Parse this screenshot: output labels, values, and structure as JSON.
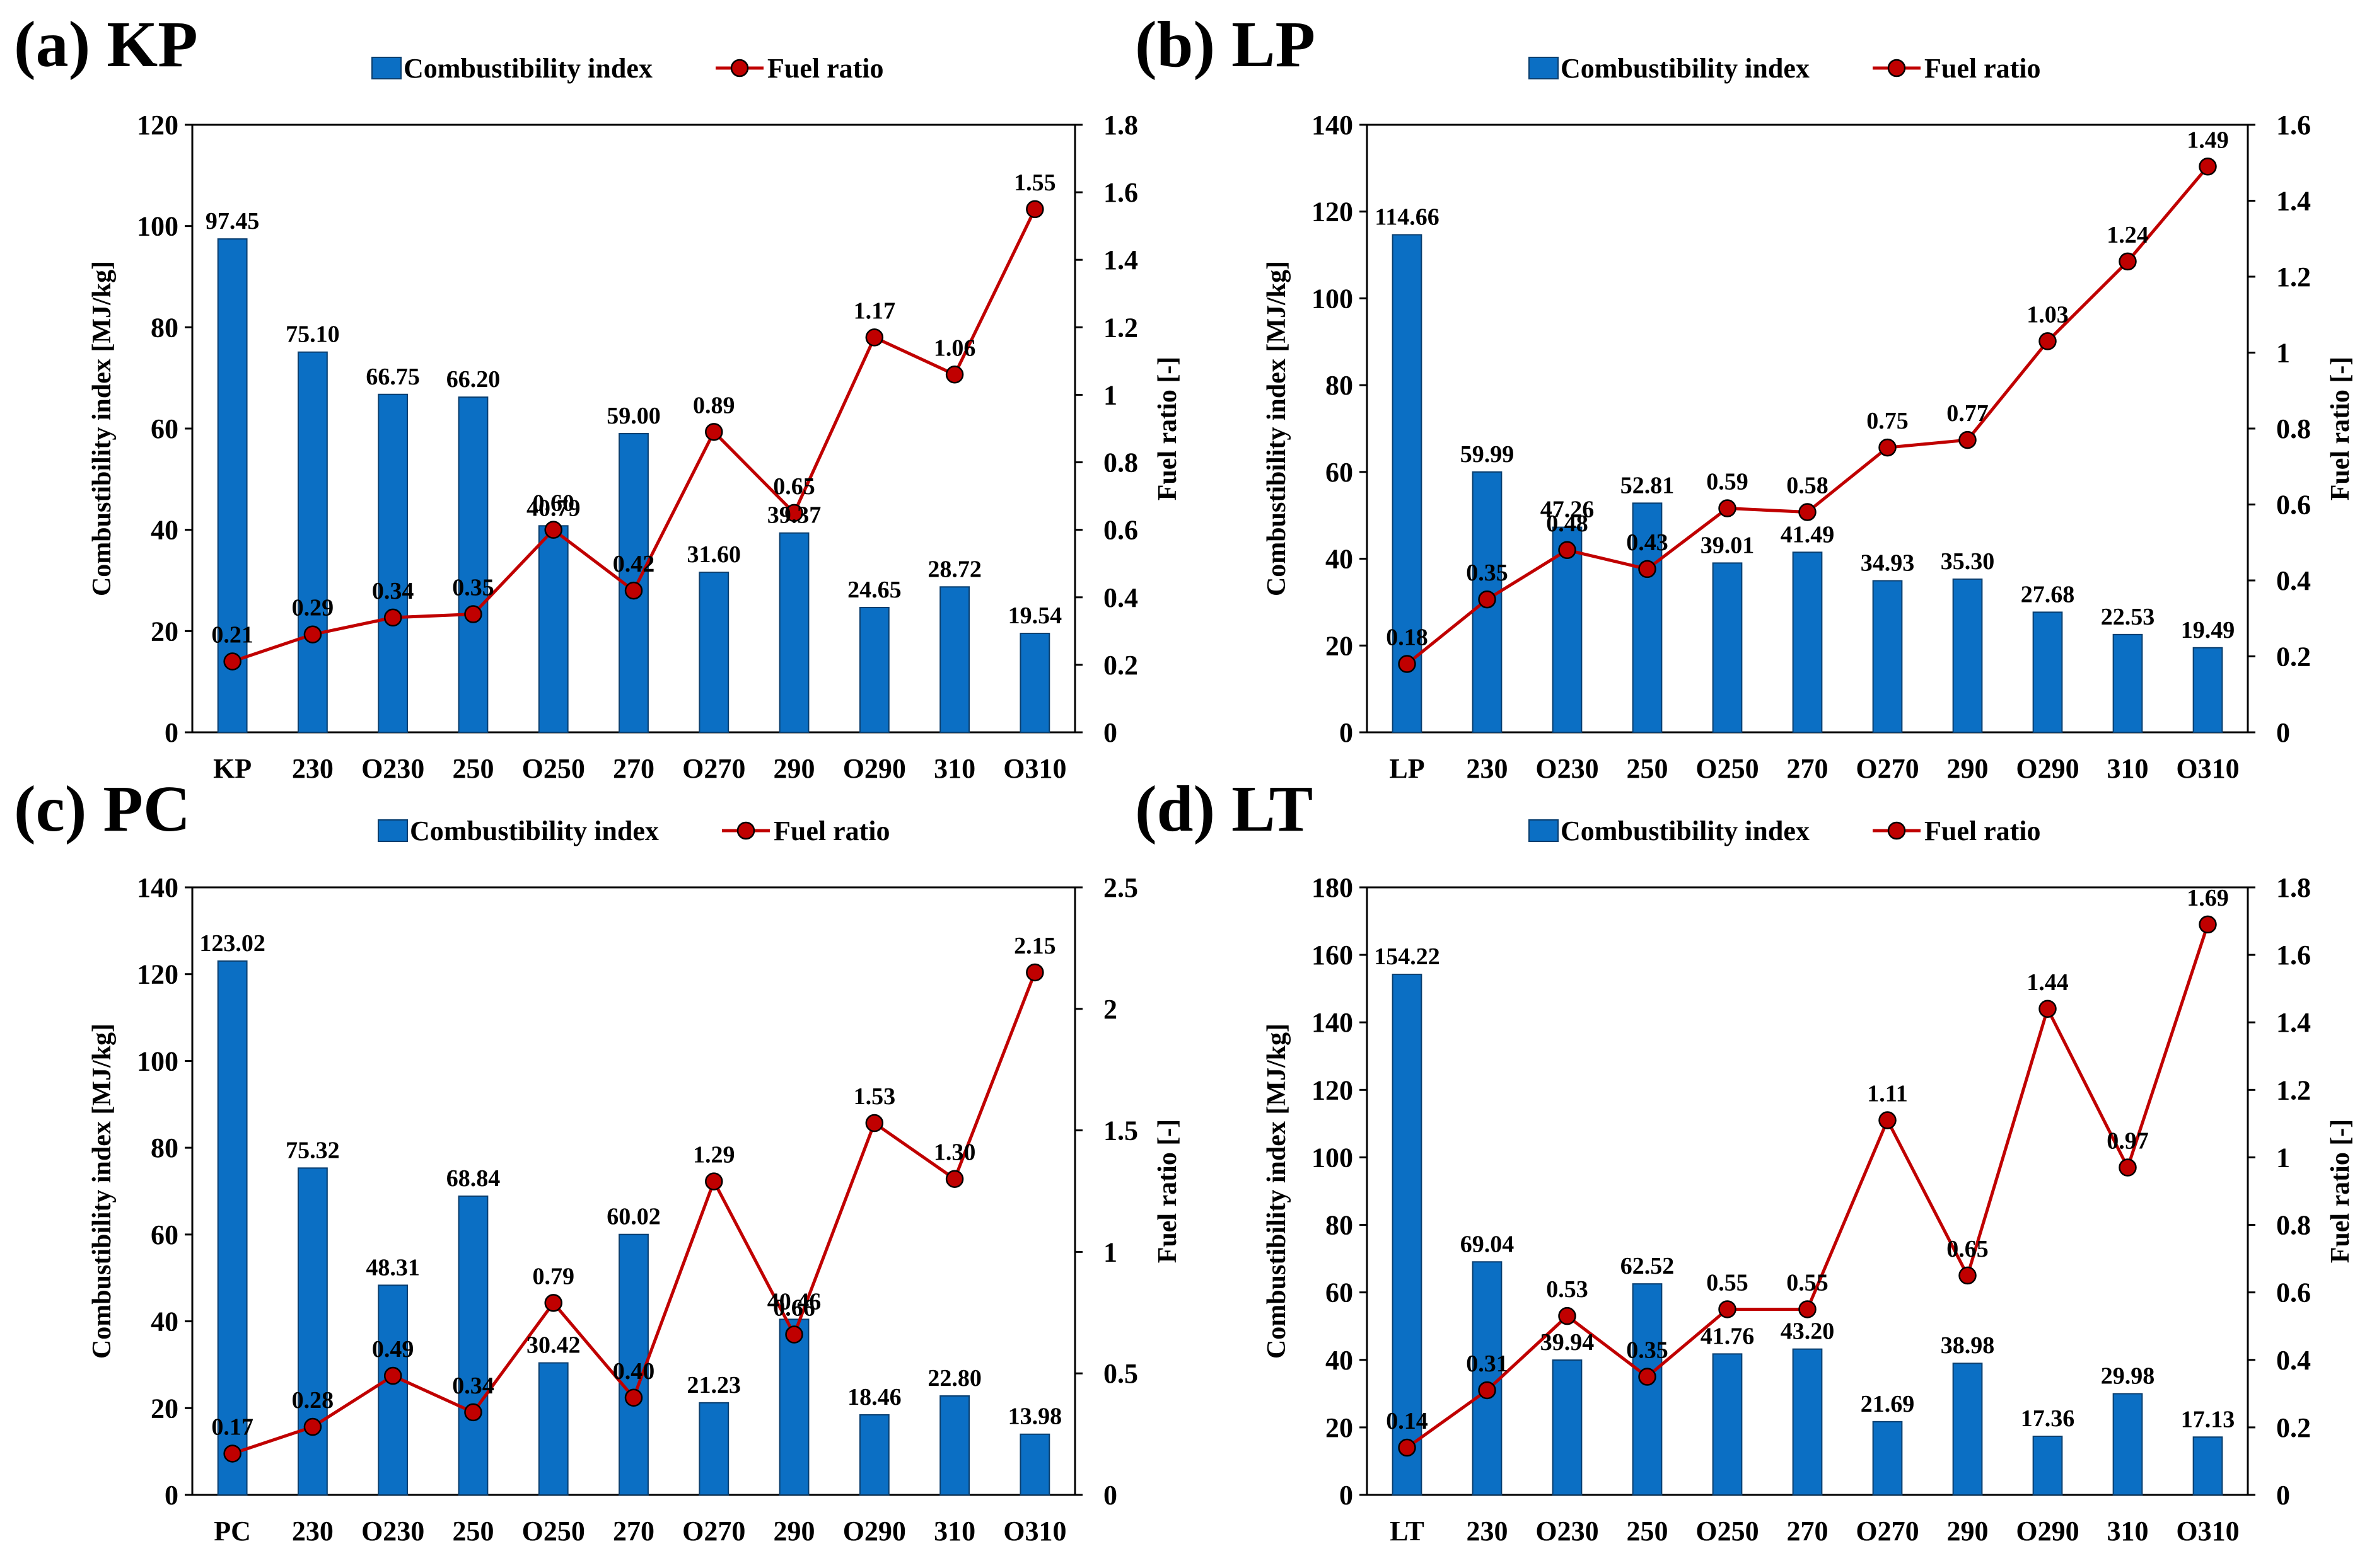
{
  "legend": {
    "bar_label": "Combustibility index",
    "line_label": "Fuel ratio",
    "bar_color": "#0B6FC4",
    "bar_edge_color": "#0A3E6E",
    "line_color": "#C00000",
    "marker_color": "#C00000"
  },
  "chart_data": [
    {
      "type": "bar+line",
      "title": "(a) KP",
      "categories": [
        "KP",
        "230",
        "O230",
        "250",
        "O250",
        "270",
        "O270",
        "290",
        "O290",
        "310",
        "O310"
      ],
      "series": [
        {
          "name": "Combustibility index",
          "axis": "left",
          "values": [
            97.45,
            75.1,
            66.75,
            66.2,
            40.79,
            59.0,
            31.6,
            39.37,
            24.65,
            28.72,
            19.54
          ],
          "labels": [
            "97.45",
            "75.10",
            "66.75",
            "66.20",
            "40.79",
            "59.00",
            "31.60",
            "39.37",
            "24.65",
            "28.72",
            "19.54"
          ]
        },
        {
          "name": "Fuel ratio",
          "axis": "right",
          "values": [
            0.21,
            0.29,
            0.34,
            0.35,
            0.6,
            0.42,
            0.89,
            0.65,
            1.17,
            1.06,
            1.55
          ],
          "labels": [
            "0.21",
            "0.29",
            "0.34",
            "0.35",
            "0.60",
            "0.42",
            "0.89",
            "0.65",
            "1.17",
            "1.06",
            "1.55"
          ]
        }
      ],
      "ylabel": "Combustibility index [MJ/kg]",
      "y2label": "Fuel ratio [-]",
      "ylim": [
        0,
        120
      ],
      "yticks": [
        "0",
        "20",
        "40",
        "60",
        "80",
        "100",
        "120"
      ],
      "y2lim": [
        0,
        1.8
      ],
      "y2ticks": [
        "0",
        "0.2",
        "0.4",
        "0.6",
        "0.8",
        "1",
        "1.2",
        "1.4",
        "1.6",
        "1.8"
      ],
      "grid": false
    },
    {
      "type": "bar+line",
      "title": "(b) LP",
      "categories": [
        "LP",
        "230",
        "O230",
        "250",
        "O250",
        "270",
        "O270",
        "290",
        "O290",
        "310",
        "O310"
      ],
      "series": [
        {
          "name": "Combustibility index",
          "axis": "left",
          "values": [
            114.66,
            59.99,
            47.26,
            52.81,
            39.01,
            41.49,
            34.93,
            35.3,
            27.68,
            22.53,
            19.49
          ],
          "labels": [
            "114.66",
            "59.99",
            "47.26",
            "52.81",
            "39.01",
            "41.49",
            "34.93",
            "35.30",
            "27.68",
            "22.53",
            "19.49"
          ]
        },
        {
          "name": "Fuel ratio",
          "axis": "right",
          "values": [
            0.18,
            0.35,
            0.48,
            0.43,
            0.59,
            0.58,
            0.75,
            0.77,
            1.03,
            1.24,
            1.49
          ],
          "labels": [
            "0.18",
            "0.35",
            "0.48",
            "0.43",
            "0.59",
            "0.58",
            "0.75",
            "0.77",
            "1.03",
            "1.24",
            "1.49"
          ]
        }
      ],
      "ylabel": "Combustibility index [MJ/kg]",
      "y2label": "Fuel ratio [-]",
      "ylim": [
        0,
        140
      ],
      "yticks": [
        "0",
        "20",
        "40",
        "60",
        "80",
        "100",
        "120",
        "140"
      ],
      "y2lim": [
        0,
        1.6
      ],
      "y2ticks": [
        "0",
        "0.2",
        "0.4",
        "0.6",
        "0.8",
        "1",
        "1.2",
        "1.4",
        "1.6"
      ],
      "grid": false
    },
    {
      "type": "bar+line",
      "title": "(c) PC",
      "categories": [
        "PC",
        "230",
        "O230",
        "250",
        "O250",
        "270",
        "O270",
        "290",
        "O290",
        "310",
        "O310"
      ],
      "series": [
        {
          "name": "Combustibility index",
          "axis": "left",
          "values": [
            123.02,
            75.32,
            48.31,
            68.84,
            30.42,
            60.02,
            21.23,
            40.46,
            18.46,
            22.8,
            13.98
          ],
          "labels": [
            "123.02",
            "75.32",
            "48.31",
            "68.84",
            "30.42",
            "60.02",
            "21.23",
            "40.46",
            "18.46",
            "22.80",
            "13.98"
          ]
        },
        {
          "name": "Fuel ratio",
          "axis": "right",
          "values": [
            0.17,
            0.28,
            0.49,
            0.34,
            0.79,
            0.4,
            1.29,
            0.66,
            1.53,
            1.3,
            2.15
          ],
          "labels": [
            "0.17",
            "0.28",
            "0.49",
            "0.34",
            "0.79",
            "0.40",
            "1.29",
            "0.66",
            "1.53",
            "1.30",
            "2.15"
          ]
        }
      ],
      "ylabel": "Combustibility index [MJ/kg]",
      "y2label": "Fuel ratio [-]",
      "ylim": [
        0,
        140
      ],
      "yticks": [
        "0",
        "20",
        "40",
        "60",
        "80",
        "100",
        "120",
        "140"
      ],
      "y2lim": [
        0,
        2.5
      ],
      "y2ticks": [
        "0",
        "0.5",
        "1",
        "1.5",
        "2",
        "2.5"
      ],
      "grid": false
    },
    {
      "type": "bar+line",
      "title": "(d) LT",
      "categories": [
        "LT",
        "230",
        "O230",
        "250",
        "O250",
        "270",
        "O270",
        "290",
        "O290",
        "310",
        "O310"
      ],
      "series": [
        {
          "name": "Combustibility index",
          "axis": "left",
          "values": [
            154.22,
            69.04,
            39.94,
            62.52,
            41.76,
            43.2,
            21.69,
            38.98,
            17.36,
            29.98,
            17.13
          ],
          "labels": [
            "154.22",
            "69.04",
            "39.94",
            "62.52",
            "41.76",
            "43.20",
            "21.69",
            "38.98",
            "17.36",
            "29.98",
            "17.13"
          ]
        },
        {
          "name": "Fuel ratio",
          "axis": "right",
          "values": [
            0.14,
            0.31,
            0.53,
            0.35,
            0.55,
            0.55,
            1.11,
            0.65,
            1.44,
            0.97,
            1.69
          ],
          "labels": [
            "0.14",
            "0.31",
            "0.53",
            "0.35",
            "0.55",
            "0.55",
            "1.11",
            "0.65",
            "1.44",
            "0.97",
            "1.69"
          ]
        }
      ],
      "ylabel": "Combustibility index [MJ/kg]",
      "y2label": "Fuel ratio [-]",
      "ylim": [
        0,
        180
      ],
      "yticks": [
        "0",
        "20",
        "40",
        "60",
        "80",
        "100",
        "120",
        "140",
        "160",
        "180"
      ],
      "y2lim": [
        0,
        1.8
      ],
      "y2ticks": [
        "0",
        "0.2",
        "0.4",
        "0.6",
        "0.8",
        "1",
        "1.2",
        "1.4",
        "1.6",
        "1.8"
      ],
      "grid": false
    }
  ]
}
